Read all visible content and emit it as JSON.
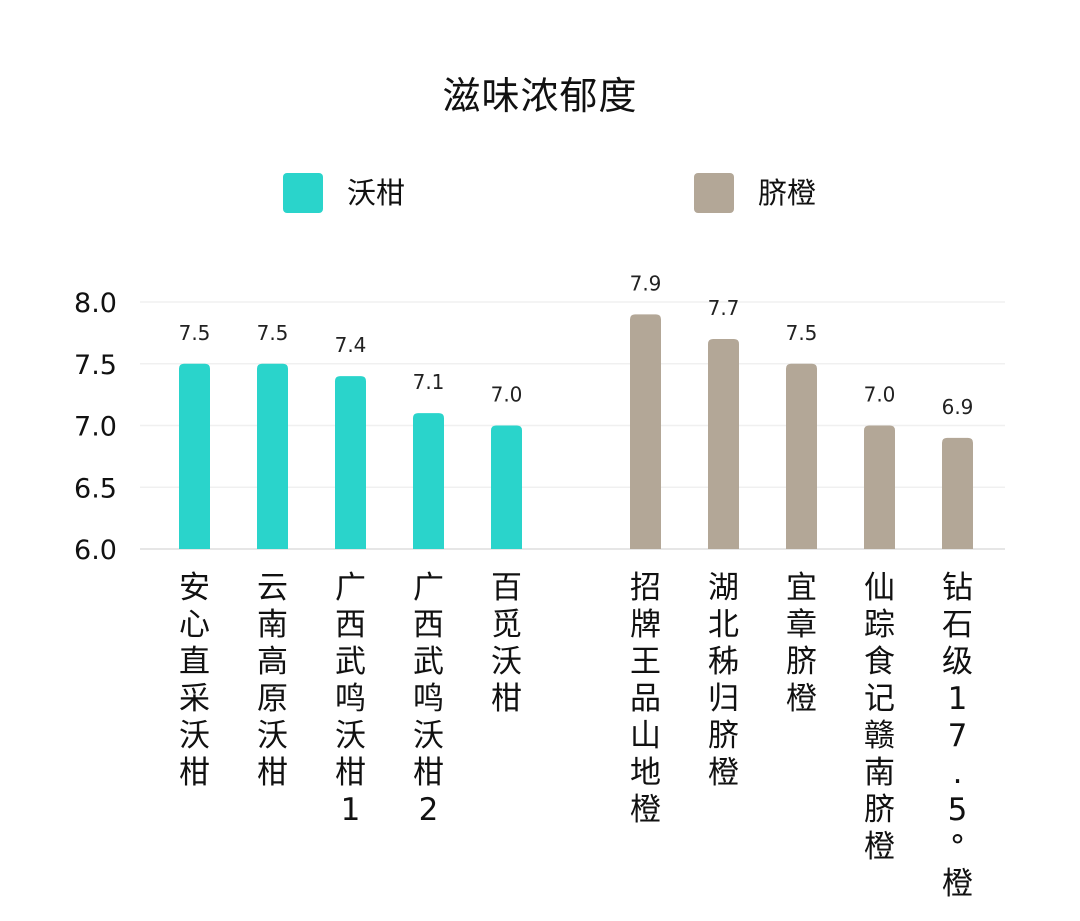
{
  "chart_data": {
    "type": "bar",
    "title": "滋味浓郁度",
    "xlabel": "",
    "ylabel": "",
    "ylim": [
      6.0,
      8.0
    ],
    "yticks": [
      "6.0",
      "6.5",
      "7.0",
      "7.5",
      "8.0"
    ],
    "grid": true,
    "legend_position": "top",
    "colors": {
      "沃柑": "#2ad4cb",
      "脐橙": "#b3a797"
    },
    "series": [
      {
        "name": "沃柑",
        "color": "#2ad4cb",
        "categories": [
          "安心直采沃柑",
          "云南高原沃柑",
          "广西武鸣沃柑1",
          "广西武鸣沃柑2",
          "百觅沃柑"
        ],
        "values": [
          7.5,
          7.5,
          7.4,
          7.1,
          7.0
        ],
        "value_labels": [
          "7.5",
          "7.5",
          "7.4",
          "7.1",
          "7.0"
        ]
      },
      {
        "name": "脐橙",
        "color": "#b3a797",
        "categories": [
          "招牌王品山地橙",
          "湖北秭归脐橙",
          "宜章脐橙",
          "仙踪食记赣南脐橙",
          "钻石级 17.5°橙"
        ],
        "values": [
          7.9,
          7.7,
          7.5,
          7.0,
          6.9
        ],
        "value_labels": [
          "7.9",
          "7.7",
          "7.5",
          "7.0",
          "6.9"
        ]
      }
    ]
  }
}
